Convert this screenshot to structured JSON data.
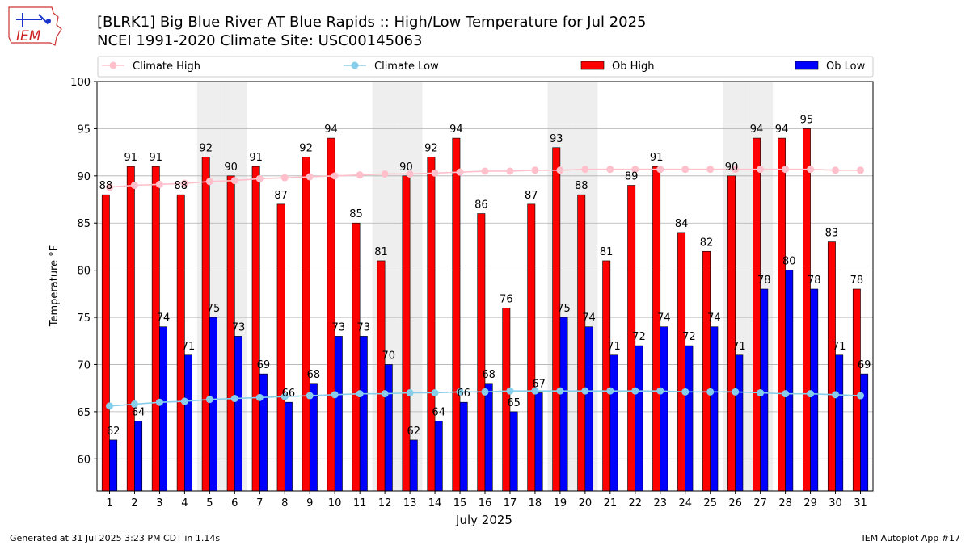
{
  "header": {
    "title_line1": "[BLRK1] Big Blue River  AT Blue Rapids :: High/Low Temperature for Jul 2025",
    "title_line2": "NCEI 1991-2020 Climate Site: USC00145063"
  },
  "logo": {
    "text": "IEM"
  },
  "footer": {
    "left": "Generated at 31 Jul 2025 3:23 PM CDT in 1.14s",
    "right": "IEM Autoplot App #17"
  },
  "chart_data": {
    "type": "bar",
    "xlabel": "July 2025",
    "ylabel": "Temperature °F",
    "ylim": [
      56.6,
      100
    ],
    "yticks": [
      60,
      65,
      70,
      75,
      80,
      85,
      90,
      95,
      100
    ],
    "grid": true,
    "legend_position": "top",
    "categories": [
      1,
      2,
      3,
      4,
      5,
      6,
      7,
      8,
      9,
      10,
      11,
      12,
      13,
      14,
      15,
      16,
      17,
      18,
      19,
      20,
      21,
      22,
      23,
      24,
      25,
      26,
      27,
      28,
      29,
      30,
      31
    ],
    "weekend_shaded_days": [
      5,
      6,
      12,
      13,
      19,
      20,
      26,
      27
    ],
    "colors": {
      "ob_high": "#ff0000",
      "ob_low": "#0000ff",
      "climate_high": "#ffc0cb",
      "climate_low": "#87ceeb",
      "weekend_shade": "#eeeeee"
    },
    "series": [
      {
        "name": "Ob High",
        "kind": "bar",
        "values": [
          88,
          91,
          91,
          88,
          92,
          90,
          91,
          87,
          92,
          94,
          85,
          81,
          90,
          92,
          94,
          86,
          76,
          87,
          93,
          88,
          81,
          89,
          91,
          84,
          82,
          90,
          94,
          94,
          95,
          83,
          78
        ]
      },
      {
        "name": "Ob Low",
        "kind": "bar",
        "values": [
          62,
          64,
          74,
          71,
          75,
          73,
          69,
          66,
          68,
          73,
          73,
          70,
          62,
          64,
          66,
          68,
          65,
          67,
          75,
          74,
          71,
          72,
          74,
          72,
          74,
          71,
          78,
          80,
          78,
          71,
          69
        ]
      },
      {
        "name": "Climate High",
        "kind": "line",
        "values": [
          88.8,
          89.0,
          89.1,
          89.2,
          89.4,
          89.5,
          89.7,
          89.8,
          89.9,
          90.0,
          90.1,
          90.2,
          90.2,
          90.3,
          90.4,
          90.5,
          90.5,
          90.6,
          90.6,
          90.7,
          90.7,
          90.7,
          90.7,
          90.7,
          90.7,
          90.7,
          90.7,
          90.7,
          90.7,
          90.6,
          90.6
        ]
      },
      {
        "name": "Climate Low",
        "kind": "line",
        "values": [
          65.6,
          65.8,
          66.0,
          66.1,
          66.3,
          66.4,
          66.5,
          66.6,
          66.7,
          66.8,
          66.9,
          66.9,
          67.0,
          67.0,
          67.1,
          67.1,
          67.2,
          67.2,
          67.2,
          67.2,
          67.2,
          67.2,
          67.2,
          67.1,
          67.1,
          67.1,
          67.0,
          66.9,
          66.9,
          66.8,
          66.7
        ]
      }
    ]
  }
}
